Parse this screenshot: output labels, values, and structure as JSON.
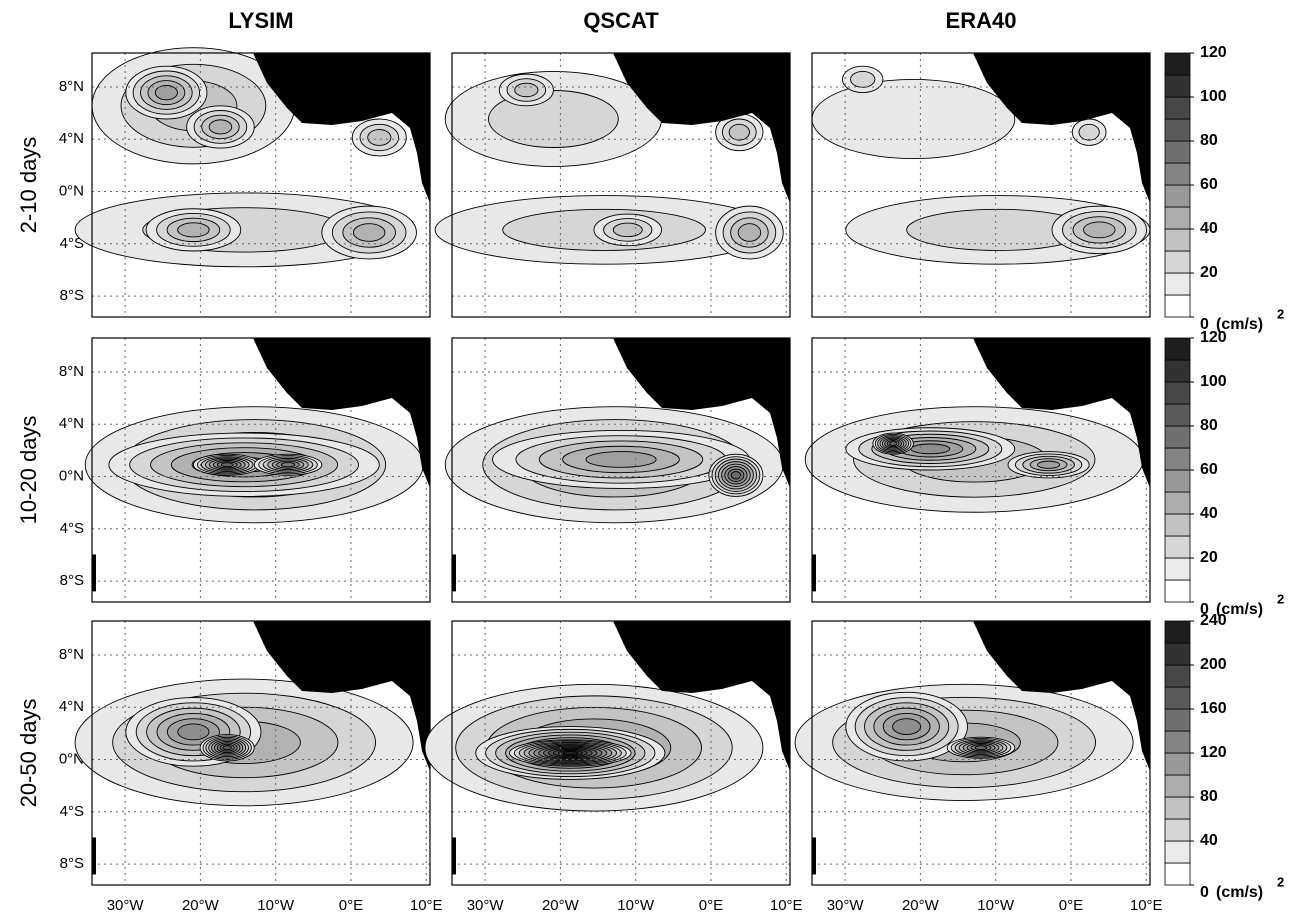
{
  "column_titles": [
    "LYSIM",
    "QSCAT",
    "ERA40"
  ],
  "rows": [
    {
      "label": "2-10 days",
      "colorbar_ticks": [
        0,
        20,
        40,
        60,
        80,
        100,
        120
      ]
    },
    {
      "label": "10-20 days",
      "colorbar_ticks": [
        0,
        20,
        40,
        60,
        80,
        100,
        120
      ]
    },
    {
      "label": "20-50 days",
      "colorbar_ticks": [
        0,
        40,
        80,
        120,
        160,
        200,
        240
      ]
    }
  ],
  "colorbar_unit": "(cm/s)",
  "colorbar_unit_power": "2",
  "lat_labels": [
    "8°N",
    "4°N",
    "0°N",
    "4°S",
    "8°S"
  ],
  "lon_labels": [
    "30°W",
    "20°W",
    "10°W",
    "0°E",
    "10°E"
  ]
}
